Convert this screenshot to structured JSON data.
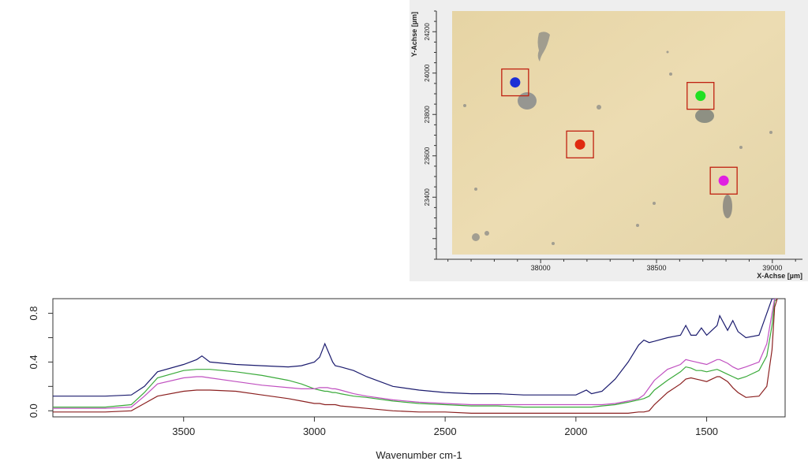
{
  "chart_data": [
    {
      "type": "scatter",
      "title": "",
      "xlabel": "X-Achse [µm]",
      "ylabel": "Y-Achse [µm]",
      "xlim": [
        37550,
        39130
      ],
      "ylim": [
        23100,
        24300
      ],
      "xticks": [
        38000,
        38500,
        39000
      ],
      "xtick_labels": [
        "38000",
        "38500",
        "39000"
      ],
      "yticks": [
        23400,
        23600,
        23800,
        24000,
        24200
      ],
      "ytick_labels": [
        "23400",
        "23600",
        "23800",
        "24000",
        "24200"
      ],
      "background": "optical microscope image",
      "points": [
        {
          "name": "blue",
          "x": 37890,
          "y": 23955,
          "color": "#1a2fd6"
        },
        {
          "name": "green",
          "x": 38690,
          "y": 23890,
          "color": "#22e022"
        },
        {
          "name": "red",
          "x": 38170,
          "y": 23655,
          "color": "#e02a10"
        },
        {
          "name": "magenta",
          "x": 38790,
          "y": 23480,
          "color": "#e020e0"
        }
      ],
      "marker_box_color": "#c02010"
    },
    {
      "type": "line",
      "title": "",
      "xlabel": "Wavenumber cm-1",
      "ylabel": "",
      "xlim": [
        4000,
        1200
      ],
      "ylim": [
        -0.05,
        0.92
      ],
      "xticks": [
        3500,
        3000,
        2500,
        2000,
        1500
      ],
      "xtick_labels": [
        "3500",
        "3000",
        "2500",
        "2000",
        "1500"
      ],
      "yticks": [
        0.0,
        0.4,
        0.8
      ],
      "ytick_labels": [
        "0.0",
        "0.4",
        "0.8"
      ],
      "grid": false,
      "x": [
        4000,
        3800,
        3700,
        3650,
        3600,
        3500,
        3450,
        3430,
        3400,
        3300,
        3200,
        3100,
        3050,
        3000,
        2980,
        2960,
        2950,
        2930,
        2920,
        2900,
        2850,
        2800,
        2700,
        2600,
        2500,
        2400,
        2300,
        2200,
        2100,
        2000,
        1960,
        1940,
        1900,
        1850,
        1800,
        1760,
        1740,
        1720,
        1700,
        1650,
        1600,
        1580,
        1560,
        1540,
        1520,
        1500,
        1480,
        1460,
        1450,
        1420,
        1400,
        1380,
        1350,
        1300,
        1270,
        1250,
        1240,
        1230
      ],
      "series": [
        {
          "name": "blue",
          "color": "#1b1b6e",
          "values": [
            0.12,
            0.12,
            0.13,
            0.2,
            0.32,
            0.38,
            0.42,
            0.45,
            0.4,
            0.38,
            0.37,
            0.36,
            0.37,
            0.4,
            0.44,
            0.55,
            0.5,
            0.4,
            0.37,
            0.36,
            0.33,
            0.28,
            0.2,
            0.17,
            0.15,
            0.14,
            0.14,
            0.13,
            0.13,
            0.13,
            0.17,
            0.14,
            0.16,
            0.26,
            0.4,
            0.54,
            0.58,
            0.56,
            0.57,
            0.6,
            0.62,
            0.7,
            0.62,
            0.62,
            0.68,
            0.62,
            0.66,
            0.7,
            0.78,
            0.66,
            0.74,
            0.65,
            0.6,
            0.62,
            0.8,
            0.92,
            0.92,
            0.92
          ]
        },
        {
          "name": "green",
          "color": "#3aaa3a",
          "values": [
            0.03,
            0.03,
            0.05,
            0.15,
            0.27,
            0.33,
            0.34,
            0.34,
            0.34,
            0.32,
            0.29,
            0.25,
            0.22,
            0.18,
            0.17,
            0.16,
            0.16,
            0.15,
            0.15,
            0.14,
            0.12,
            0.11,
            0.08,
            0.06,
            0.05,
            0.04,
            0.04,
            0.03,
            0.03,
            0.03,
            0.03,
            0.03,
            0.04,
            0.05,
            0.07,
            0.09,
            0.1,
            0.12,
            0.17,
            0.25,
            0.32,
            0.36,
            0.35,
            0.33,
            0.33,
            0.32,
            0.33,
            0.34,
            0.33,
            0.3,
            0.28,
            0.26,
            0.28,
            0.33,
            0.45,
            0.7,
            0.9,
            0.92
          ]
        },
        {
          "name": "magenta",
          "color": "#c050c0",
          "values": [
            0.02,
            0.02,
            0.03,
            0.12,
            0.22,
            0.27,
            0.28,
            0.28,
            0.27,
            0.24,
            0.21,
            0.19,
            0.18,
            0.18,
            0.19,
            0.19,
            0.19,
            0.18,
            0.18,
            0.17,
            0.14,
            0.12,
            0.09,
            0.07,
            0.06,
            0.05,
            0.05,
            0.05,
            0.05,
            0.05,
            0.05,
            0.05,
            0.05,
            0.06,
            0.08,
            0.1,
            0.13,
            0.19,
            0.25,
            0.34,
            0.38,
            0.42,
            0.41,
            0.4,
            0.39,
            0.38,
            0.4,
            0.42,
            0.42,
            0.39,
            0.36,
            0.34,
            0.36,
            0.4,
            0.55,
            0.8,
            0.92,
            0.92
          ]
        },
        {
          "name": "red",
          "color": "#8b2020",
          "values": [
            -0.01,
            -0.01,
            0.0,
            0.06,
            0.12,
            0.16,
            0.17,
            0.17,
            0.17,
            0.16,
            0.13,
            0.1,
            0.08,
            0.06,
            0.06,
            0.05,
            0.05,
            0.05,
            0.05,
            0.04,
            0.03,
            0.02,
            0.0,
            -0.01,
            -0.01,
            -0.02,
            -0.02,
            -0.02,
            -0.02,
            -0.02,
            -0.02,
            -0.02,
            -0.02,
            -0.02,
            -0.02,
            -0.01,
            -0.01,
            0.0,
            0.05,
            0.15,
            0.22,
            0.26,
            0.27,
            0.26,
            0.25,
            0.24,
            0.26,
            0.28,
            0.28,
            0.24,
            0.19,
            0.15,
            0.11,
            0.12,
            0.2,
            0.5,
            0.85,
            0.92
          ]
        }
      ]
    }
  ]
}
